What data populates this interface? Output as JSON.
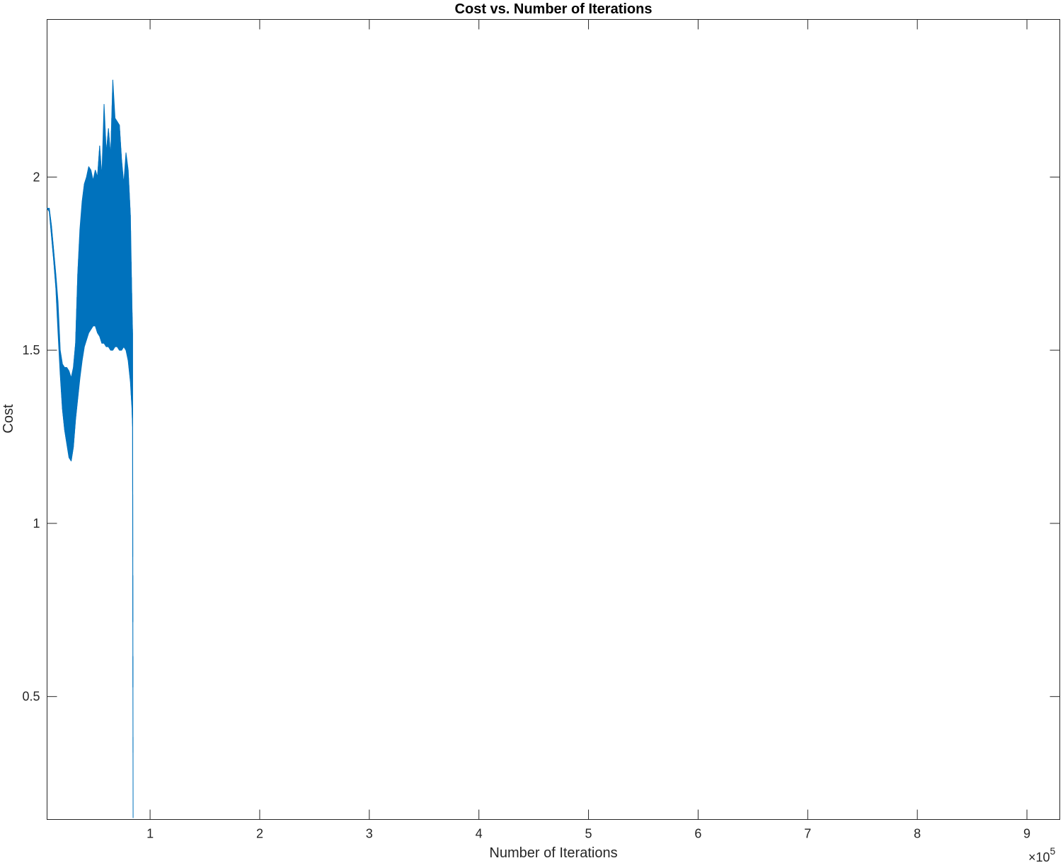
{
  "chart_data": {
    "type": "line",
    "title": "Cost vs. Number of Iterations",
    "xlabel": "Number of Iterations",
    "ylabel": "Cost",
    "x_multiplier": {
      "base": "×10",
      "exponent": "5"
    },
    "xlim": [
      6000,
      930000
    ],
    "ylim": [
      0.145,
      2.455
    ],
    "xticks": [
      {
        "value": 100000,
        "label": "1"
      },
      {
        "value": 200000,
        "label": "2"
      },
      {
        "value": 300000,
        "label": "3"
      },
      {
        "value": 400000,
        "label": "4"
      },
      {
        "value": 500000,
        "label": "5"
      },
      {
        "value": 600000,
        "label": "6"
      },
      {
        "value": 700000,
        "label": "7"
      },
      {
        "value": 800000,
        "label": "8"
      },
      {
        "value": 900000,
        "label": "9"
      }
    ],
    "yticks": [
      {
        "value": 0.5,
        "label": "0.5"
      },
      {
        "value": 1,
        "label": "1"
      },
      {
        "value": 1.5,
        "label": "1.5"
      },
      {
        "value": 2,
        "label": "2"
      }
    ],
    "grid": false,
    "box": true,
    "series": [
      {
        "color": "#0072BD",
        "x": [
          6000,
          8000,
          10000,
          12000,
          14000,
          16000,
          18000,
          20000,
          22000,
          24000,
          26000,
          28000,
          30000,
          32000,
          34000,
          36000,
          38000,
          40000,
          42000,
          44000,
          46000,
          48000,
          50000,
          52000,
          54000,
          56000,
          58000,
          60000,
          62000,
          64000,
          66000,
          68000,
          70000,
          72000,
          74000,
          76000,
          78000,
          80000,
          82000,
          83500,
          84000,
          84500
        ],
        "lower": [
          1.91,
          1.9,
          1.83,
          1.76,
          1.68,
          1.55,
          1.43,
          1.33,
          1.27,
          1.23,
          1.19,
          1.18,
          1.22,
          1.3,
          1.36,
          1.42,
          1.47,
          1.51,
          1.53,
          1.55,
          1.56,
          1.57,
          1.57,
          1.55,
          1.54,
          1.52,
          1.52,
          1.51,
          1.51,
          1.5,
          1.5,
          1.51,
          1.51,
          1.5,
          1.5,
          1.51,
          1.5,
          1.47,
          1.41,
          1.33,
          1.28,
          0.15
        ],
        "upper": [
          1.91,
          1.91,
          1.86,
          1.79,
          1.72,
          1.64,
          1.5,
          1.46,
          1.45,
          1.45,
          1.44,
          1.42,
          1.45,
          1.52,
          1.72,
          1.85,
          1.93,
          1.98,
          2.0,
          2.03,
          2.02,
          1.99,
          2.02,
          2.0,
          2.09,
          2.0,
          2.21,
          2.07,
          2.14,
          2.06,
          2.28,
          2.17,
          2.16,
          2.15,
          2.05,
          1.98,
          2.07,
          2.02,
          1.89,
          1.62,
          1.55,
          0.15
        ]
      }
    ]
  }
}
